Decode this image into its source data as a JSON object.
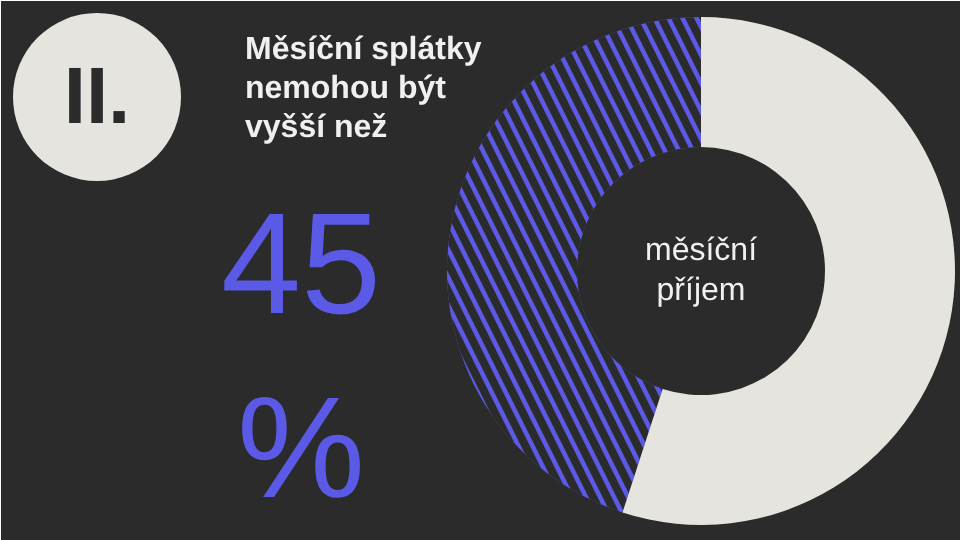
{
  "chart_data": {
    "type": "donut",
    "title": "Měsíční splátky nemohou být vyšší než",
    "categories": [
      null,
      null
    ],
    "values": [
      45,
      55
    ],
    "colors": [
      "#5a5ae6",
      "#e6e4df"
    ],
    "value_labels": [
      "45 %",
      null
    ],
    "annotations": [
      "II.",
      "měsíční příjem"
    ]
  }
}
